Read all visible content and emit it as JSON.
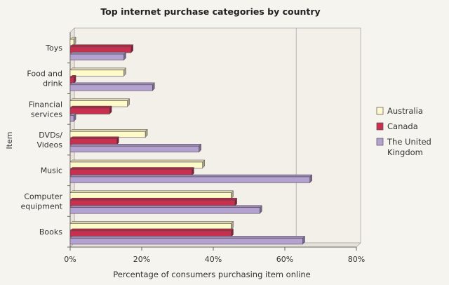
{
  "colors": {
    "australia": "#fdfbc8",
    "canada": "#c8304e",
    "uk": "#b3a2cf",
    "bar_stroke": "#5a4a5a",
    "page": "#f6f4ef",
    "plot_bg": "#f3f0ea",
    "axis_text": "#333333"
  },
  "chart_data": {
    "type": "bar",
    "orientation": "horizontal",
    "title": "Top internet purchase categories by country",
    "xlabel": "Percentage of consumers purchasing item online",
    "ylabel": "Item",
    "xlim": [
      0,
      80
    ],
    "xticks": [
      "0%",
      "20%",
      "40%",
      "60%",
      "80%"
    ],
    "grid": false,
    "legend_position": "right",
    "categories": [
      "Toys",
      "Food and drink",
      "Financial services",
      "DVDs/ Videos",
      "Music",
      "Computer equipment",
      "Books"
    ],
    "category_lines": [
      [
        "Toys"
      ],
      [
        "Food and",
        "drink"
      ],
      [
        "Financial",
        "services"
      ],
      [
        "DVDs/",
        "Videos"
      ],
      [
        "Music"
      ],
      [
        "Computer",
        "equipment"
      ],
      [
        "Books"
      ]
    ],
    "series": [
      {
        "name": "Australia",
        "values": [
          1,
          15,
          16,
          21,
          37,
          45,
          45
        ]
      },
      {
        "name": "Canada",
        "values": [
          17,
          1,
          11,
          13,
          34,
          46,
          45
        ]
      },
      {
        "name": "The United Kingdom",
        "values": [
          15,
          23,
          1,
          36,
          67,
          53,
          65
        ]
      }
    ],
    "legend_lines": [
      [
        "Australia"
      ],
      [
        "Canada"
      ],
      [
        "The United",
        "Kingdom"
      ]
    ]
  }
}
